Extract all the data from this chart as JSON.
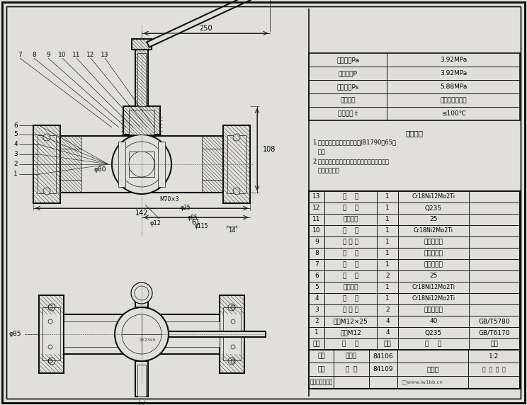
{
  "bg_color": "#e0e0d8",
  "border_color": "#111111",
  "line_color": "#111111",
  "pressure_table_rows": [
    [
      "公称压力Pa",
      "3.92MPa"
    ],
    [
      "密封压力P",
      "3.92MPa"
    ],
    [
      "试验压力Ps",
      "5.88MPa"
    ],
    [
      "适用介质",
      "醋酸磷酸浓硫酸"
    ],
    [
      "适用温度 t",
      "≤100℃"
    ]
  ],
  "tech_req_title": "技术要求",
  "tech_req_lines": [
    "1.制造与验收技术条件应符合JB1790－65的",
    "   规定",
    "2.不锈钢材料进厂后做化学分析的腐蚀性试验，",
    "   合格后方投产"
  ],
  "parts_rows": [
    [
      "13",
      "阀    杆",
      "1",
      "Cr18Ni12Mo2Ti",
      ""
    ],
    [
      "12",
      "扳    手",
      "1",
      "Q235",
      ""
    ],
    [
      "11",
      "螺纹压环",
      "1",
      "25",
      ""
    ],
    [
      "10",
      "阀    体",
      "1",
      "Cr18Ni2Mo2Ti",
      ""
    ],
    [
      "9",
      "密 封 环",
      "1",
      "聚四氟乙烯",
      ""
    ],
    [
      "8",
      "垫    环",
      "1",
      "聚四氟乙烯",
      ""
    ],
    [
      "7",
      "垫    片",
      "1",
      "聚四氟乙烯",
      ""
    ],
    [
      "6",
      "法    兰",
      "2",
      "25",
      ""
    ],
    [
      "5",
      "阀体接头",
      "1",
      "Cr18Ni12Mo2Ti",
      ""
    ],
    [
      "4",
      "球    心",
      "1",
      "Cr18Ni12Mo2Ti",
      ""
    ],
    [
      "3",
      "密 封 圈",
      "2",
      "聚四氟乙烯",
      ""
    ],
    [
      "2",
      "螺柱M12×25",
      "4",
      "40",
      "GB/T5780"
    ],
    [
      "1",
      "螺母M12",
      "4",
      "Q235",
      "GB/T6170"
    ]
  ],
  "parts_header": [
    "序号",
    "名    称",
    "数量",
    "材    料",
    "备注"
  ],
  "title_block": {
    "row1": [
      "制图",
      "王光明",
      "84106",
      "球心阀",
      "1:2"
    ],
    "row2": [
      "校核",
      "向  中",
      "84109",
      "",
      "共  张  第  张"
    ],
    "row3": [
      "（校名、班号）",
      "",
      "",
      "图号www.iw1bb.cn",
      ""
    ]
  },
  "dim_250": "250",
  "dim_108": "108",
  "dim_142": "142",
  "dim_61": "61",
  "dim_14": "14",
  "dim_phi80": "φ80",
  "dim_phi85": "φ85",
  "dim_phi115": "φ115",
  "dim_phi25": "φ25",
  "dim_phi12": "φ12",
  "dim_M70x3": "M70×3"
}
